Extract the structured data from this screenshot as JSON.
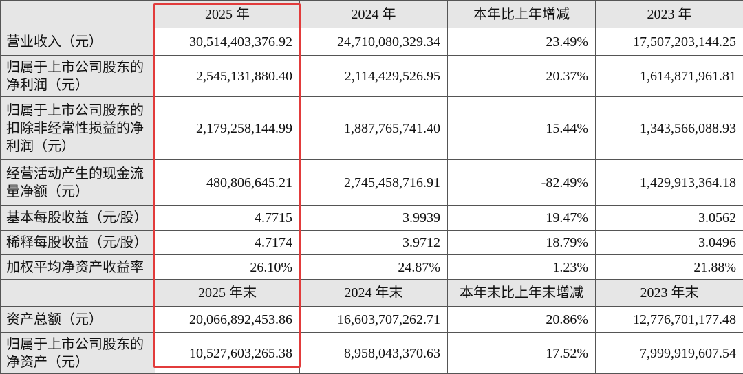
{
  "table": {
    "sections": [
      {
        "header": [
          "2025 年",
          "2024 年",
          "本年比上年增减",
          "2023 年"
        ],
        "rows": [
          {
            "label": "营业收入（元）",
            "cells": [
              "30,514,403,376.92",
              "24,710,080,329.34",
              "23.49%",
              "17,507,203,144.25"
            ]
          },
          {
            "label": "归属于上市公司股东的净利润（元）",
            "cells": [
              "2,545,131,880.40",
              "2,114,429,526.95",
              "20.37%",
              "1,614,871,961.81"
            ]
          },
          {
            "label": "归属于上市公司股东的扣除非经常性损益的净利润（元）",
            "cells": [
              "2,179,258,144.99",
              "1,887,765,741.40",
              "15.44%",
              "1,343,566,088.93"
            ]
          },
          {
            "label": "经营活动产生的现金流量净额（元）",
            "cells": [
              "480,806,645.21",
              "2,745,458,716.91",
              "-82.49%",
              "1,429,913,364.18"
            ]
          },
          {
            "label": "基本每股收益（元/股）",
            "cells": [
              "4.7715",
              "3.9939",
              "19.47%",
              "3.0562"
            ]
          },
          {
            "label": "稀释每股收益（元/股）",
            "cells": [
              "4.7174",
              "3.9712",
              "18.79%",
              "3.0496"
            ]
          },
          {
            "label": "加权平均净资产收益率",
            "cells": [
              "26.10%",
              "24.87%",
              "1.23%",
              "21.88%"
            ]
          }
        ]
      },
      {
        "header": [
          "2025 年末",
          "2024 年末",
          "本年末比上年末增减",
          "2023 年末"
        ],
        "rows": [
          {
            "label": "资产总额（元）",
            "cells": [
              "20,066,892,453.86",
              "16,603,707,262.71",
              "20.86%",
              "12,776,701,177.48"
            ]
          },
          {
            "label": "归属于上市公司股东的净资产（元）",
            "cells": [
              "10,527,603,265.38",
              "8,958,043,370.63",
              "17.52%",
              "7,999,919,607.54"
            ]
          }
        ]
      }
    ]
  }
}
